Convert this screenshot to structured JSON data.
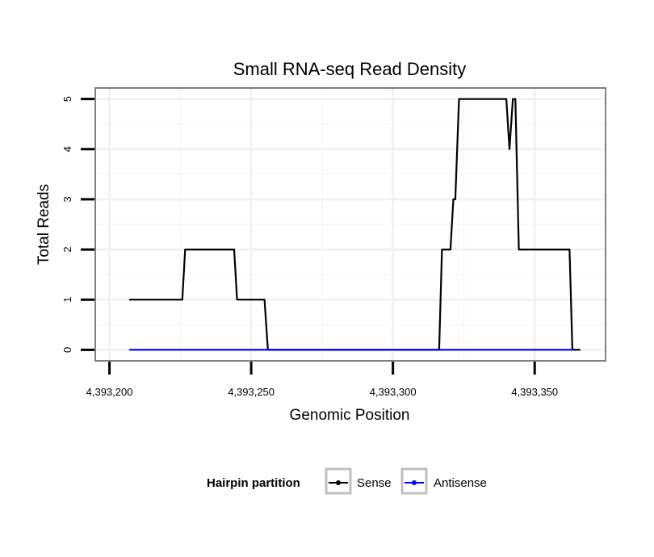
{
  "chart_data": {
    "type": "line",
    "title": "Small RNA-seq Read Density",
    "xlabel": "Genomic Position",
    "ylabel": "Total Reads",
    "xlim": [
      4393195,
      4393375
    ],
    "ylim": [
      -0.22,
      5.22
    ],
    "x_ticks": [
      4393200,
      4393250,
      4393300,
      4393350
    ],
    "x_tick_labels": [
      "4,393,200",
      "4,393,250",
      "4,393,300",
      "4,393,350"
    ],
    "y_ticks": [
      0,
      1,
      2,
      3,
      4,
      5
    ],
    "y_tick_labels": [
      "0",
      "1",
      "2",
      "3",
      "4",
      "5"
    ],
    "grid": true,
    "legend": {
      "title": "Hairpin partition",
      "position": "bottom",
      "entries": [
        "Sense",
        "Antisense"
      ]
    },
    "series": [
      {
        "name": "Sense",
        "color": "#000000",
        "points": [
          [
            4393207,
            1
          ],
          [
            4393225.7,
            1
          ],
          [
            4393226.7,
            2
          ],
          [
            4393244,
            2
          ],
          [
            4393245,
            1
          ],
          [
            4393254.7,
            1
          ],
          [
            4393255.9,
            0
          ],
          [
            4393316.3,
            0
          ],
          [
            4393317.3,
            2
          ],
          [
            4393320.3,
            2
          ],
          [
            4393321.3,
            3
          ],
          [
            4393322,
            3
          ],
          [
            4393323.3,
            5
          ],
          [
            4393340,
            5
          ],
          [
            4393341.1,
            4
          ],
          [
            4393342.3,
            5
          ],
          [
            4393343.2,
            5
          ],
          [
            4393344.4,
            2
          ],
          [
            4393362.3,
            2
          ],
          [
            4393363.3,
            0
          ],
          [
            4393366.1,
            0
          ]
        ]
      },
      {
        "name": "Antisense",
        "color": "#0000ff",
        "points": [
          [
            4393207,
            0
          ],
          [
            4393363.3,
            0
          ]
        ]
      }
    ]
  }
}
